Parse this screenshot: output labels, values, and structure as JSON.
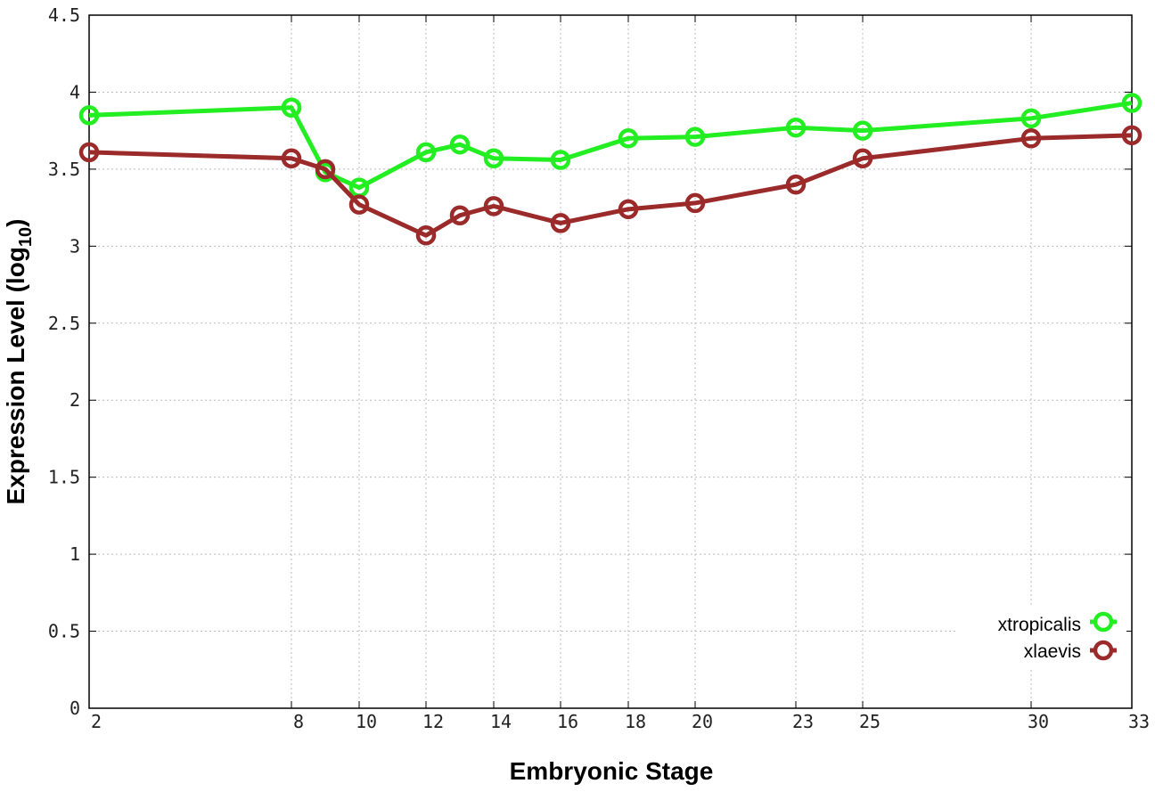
{
  "chart_data": {
    "type": "line",
    "xlabel": "Embryonic Stage",
    "ylabel_main": "Expression Level (log",
    "ylabel_sub": "10",
    "ylabel_close": ")",
    "x_ticks": [
      "2",
      "8",
      "10",
      "12",
      "14",
      "16",
      "18",
      "20",
      "23",
      "25",
      "30",
      "33"
    ],
    "y_ticks": [
      "0",
      "0.5",
      "1",
      "1.5",
      "2",
      "2.5",
      "3",
      "3.5",
      "4",
      "4.5"
    ],
    "ylim": [
      0,
      4.5
    ],
    "x_scale": "categorical-ordinal",
    "grid": true,
    "legend_position": "bottom-right",
    "categories": [
      "2",
      "8",
      "9",
      "10",
      "12",
      "13",
      "14",
      "16",
      "18",
      "20",
      "23",
      "25",
      "30",
      "33"
    ],
    "series": [
      {
        "name": "xtropicalis",
        "color": "#22ee22",
        "values": [
          3.85,
          3.9,
          3.48,
          3.38,
          3.61,
          3.66,
          3.57,
          3.56,
          3.7,
          3.71,
          3.77,
          3.75,
          3.83,
          3.93
        ]
      },
      {
        "name": "xlaevis",
        "color": "#9b2a2a",
        "values": [
          3.61,
          3.57,
          3.5,
          3.27,
          3.07,
          3.2,
          3.26,
          3.15,
          3.24,
          3.28,
          3.4,
          3.57,
          3.7,
          3.72
        ]
      }
    ]
  }
}
